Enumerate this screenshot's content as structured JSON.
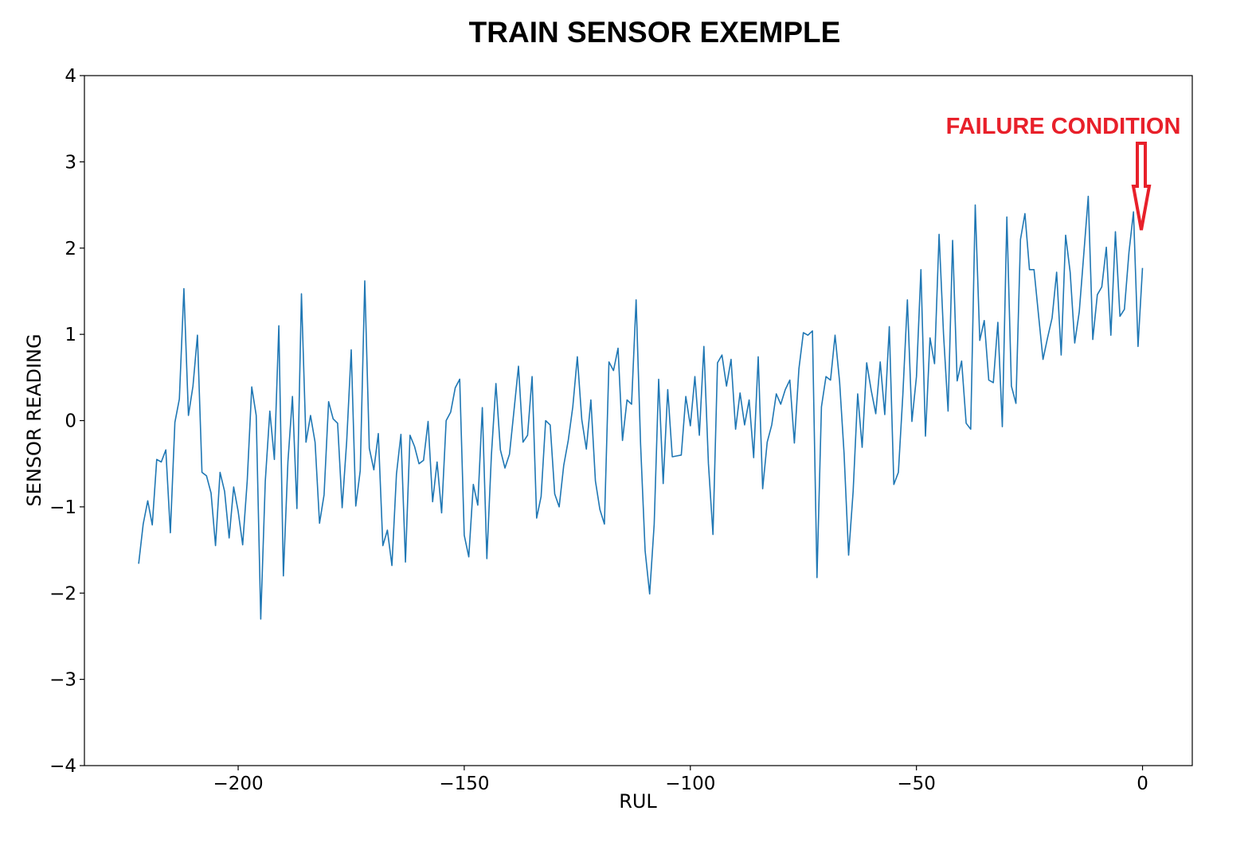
{
  "chart_data": {
    "type": "line",
    "title": "TRAIN SENSOR EXEMPLE",
    "xlabel": "RUL",
    "ylabel": "SENSOR READING",
    "xlim": [
      -234,
      11
    ],
    "ylim": [
      -4,
      4
    ],
    "xticks": [
      -200,
      -150,
      -100,
      -50,
      0
    ],
    "xtick_labels": [
      "−200",
      "−150",
      "−100",
      "−50",
      "0"
    ],
    "yticks": [
      -4,
      -3,
      -2,
      -1,
      0,
      1,
      2,
      3,
      4
    ],
    "ytick_labels": [
      "−4",
      "−3",
      "−2",
      "−1",
      "0",
      "1",
      "2",
      "3",
      "4"
    ],
    "grid": false,
    "series_color": "#1f77b4",
    "annotation": {
      "text": "FAILURE CONDITION",
      "color": "#e8202a",
      "points_to": {
        "x": 0,
        "y": 2.2
      }
    },
    "x": [
      -222,
      -221,
      -220,
      -219,
      -218,
      -217,
      -216,
      -215,
      -214,
      -213,
      -212,
      -211,
      -210,
      -209,
      -208,
      -207,
      -206,
      -205,
      -204,
      -203,
      -202,
      -201,
      -200,
      -199,
      -198,
      -197,
      -196,
      -195,
      -194,
      -193,
      -192,
      -191,
      -190,
      -189,
      -188,
      -187,
      -186,
      -185,
      -184,
      -183,
      -182,
      -181,
      -180,
      -179,
      -178,
      -177,
      -176,
      -175,
      -174,
      -173,
      -172,
      -171,
      -170,
      -169,
      -168,
      -167,
      -166,
      -165,
      -164,
      -163,
      -162,
      -161,
      -160,
      -159,
      -158,
      -157,
      -156,
      -155,
      -154,
      -153,
      -152,
      -151,
      -150,
      -149,
      -148,
      -147,
      -146,
      -145,
      -144,
      -143,
      -142,
      -141,
      -140,
      -139,
      -138,
      -137,
      -136,
      -135,
      -134,
      -133,
      -132,
      -131,
      -130,
      -129,
      -128,
      -127,
      -126,
      -125,
      -124,
      -123,
      -122,
      -121,
      -120,
      -119,
      -118,
      -117,
      -116,
      -115,
      -114,
      -113,
      -112,
      -111,
      -110,
      -109,
      -108,
      -107,
      -106,
      -105,
      -104,
      -103,
      -102,
      -101,
      -100,
      -99,
      -98,
      -97,
      -96,
      -95,
      -94,
      -93,
      -92,
      -91,
      -90,
      -89,
      -88,
      -87,
      -86,
      -85,
      -84,
      -83,
      -82,
      -81,
      -80,
      -79,
      -78,
      -77,
      -76,
      -75,
      -74,
      -73,
      -72,
      -71,
      -70,
      -69,
      -68,
      -67,
      -66,
      -65,
      -64,
      -63,
      -62,
      -61,
      -60,
      -59,
      -58,
      -57,
      -56,
      -55,
      -54,
      -53,
      -52,
      -51,
      -50,
      -49,
      -48,
      -47,
      -46,
      -45,
      -44,
      -43,
      -42,
      -41,
      -40,
      -39,
      -38,
      -37,
      -36,
      -35,
      -34,
      -33,
      -32,
      -31,
      -30,
      -29,
      -28,
      -27,
      -26,
      -25,
      -24,
      -23,
      -22,
      -21,
      -20,
      -19,
      -18,
      -17,
      -16,
      -15,
      -14,
      -13,
      -12,
      -11,
      -10,
      -9,
      -8,
      -7,
      -6,
      -5,
      -4,
      -3,
      -2,
      -1,
      0
    ],
    "y": [
      -1.66,
      -1.2,
      -0.93,
      -1.21,
      -0.45,
      -0.48,
      -0.34,
      -1.3,
      -0.02,
      0.25,
      1.53,
      0.06,
      0.4,
      0.99,
      -0.6,
      -0.64,
      -0.84,
      -1.45,
      -0.6,
      -0.82,
      -1.36,
      -0.77,
      -1.05,
      -1.44,
      -0.7,
      0.39,
      0.06,
      -2.3,
      -0.7,
      0.11,
      -0.45,
      1.1,
      -1.8,
      -0.48,
      0.28,
      -1.02,
      1.47,
      -0.25,
      0.06,
      -0.25,
      -1.19,
      -0.86,
      0.22,
      0.02,
      -0.03,
      -1.01,
      -0.24,
      0.82,
      -0.99,
      -0.58,
      1.62,
      -0.32,
      -0.57,
      -0.15,
      -1.45,
      -1.27,
      -1.68,
      -0.62,
      -0.16,
      -1.64,
      -0.17,
      -0.3,
      -0.5,
      -0.46,
      -0.01,
      -0.94,
      -0.48,
      -1.07,
      0.0,
      0.1,
      0.38,
      0.48,
      -1.33,
      -1.58,
      -0.74,
      -0.98,
      0.15,
      -1.6,
      -0.4,
      0.43,
      -0.34,
      -0.55,
      -0.39,
      0.12,
      0.63,
      -0.25,
      -0.17,
      0.51,
      -1.13,
      -0.88,
      0.0,
      -0.05,
      -0.85,
      -1.0,
      -0.52,
      -0.23,
      0.16,
      0.74,
      0.01,
      -0.33,
      0.24,
      -0.7,
      -1.03,
      -1.2,
      0.68,
      0.58,
      0.84,
      -0.23,
      0.24,
      0.19,
      1.4,
      -0.27,
      -1.51,
      -2.01,
      -1.2,
      0.48,
      -0.73,
      0.36,
      -0.42,
      -0.41,
      -0.4,
      0.28,
      -0.06,
      0.51,
      -0.17,
      0.86,
      -0.5,
      -1.32,
      0.67,
      0.76,
      0.4,
      0.71,
      -0.1,
      0.32,
      -0.05,
      0.24,
      -0.43,
      0.74,
      -0.79,
      -0.25,
      -0.05,
      0.31,
      0.19,
      0.36,
      0.47,
      -0.26,
      0.6,
      1.02,
      0.99,
      1.04,
      -1.82,
      0.16,
      0.51,
      0.47,
      0.99,
      0.45,
      -0.38,
      -1.56,
      -0.82,
      0.31,
      -0.31,
      0.67,
      0.35,
      0.08,
      0.68,
      0.07,
      1.09,
      -0.74,
      -0.6,
      0.3,
      1.4,
      -0.01,
      0.51,
      1.75,
      -0.18,
      0.96,
      0.66,
      2.16,
      1.0,
      0.11,
      2.09,
      0.46,
      0.69,
      -0.03,
      -0.1,
      2.5,
      0.93,
      1.16,
      0.47,
      0.44,
      1.14,
      -0.07,
      2.36,
      0.4,
      0.2,
      2.1,
      2.4,
      1.75,
      1.75,
      1.22,
      0.71,
      0.96,
      1.19,
      1.72,
      0.76,
      2.15,
      1.72,
      0.9,
      1.26,
      1.92,
      2.6,
      0.94,
      1.46,
      1.55,
      2.01,
      0.99,
      2.19,
      1.21,
      1.29,
      1.95,
      2.42,
      0.86,
      1.77
    ]
  }
}
